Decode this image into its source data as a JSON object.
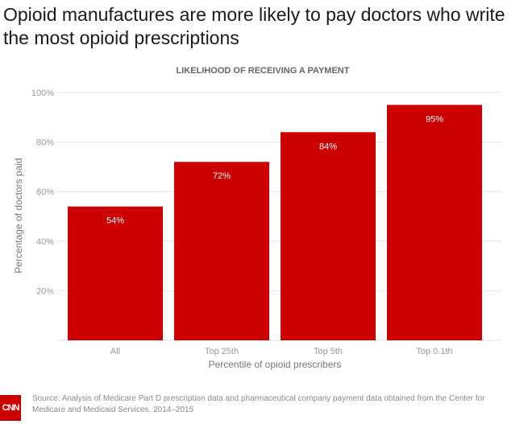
{
  "title": "Opioid manufactures are more likely to pay doctors who write the most opioid prescriptions",
  "source": "Source: Analysis of Medicare Part D prescription data and pharmaceutical company payment data obtained from the Center for Medicare and Medicaid Services, 2014–2015",
  "logo_text": "CNN",
  "chart_data": {
    "type": "bar",
    "title": "LIKELIHOOD OF RECEIVING A PAYMENT",
    "xlabel": "Percentile of opioid prescribers",
    "ylabel": "Percentage of doctors paid",
    "categories": [
      "All",
      "Top 25th",
      "Top 5th",
      "Top 0.1th"
    ],
    "values": [
      54,
      72,
      84,
      95
    ],
    "data_labels": [
      "54%",
      "72%",
      "84%",
      "95%"
    ],
    "yticks": [
      20,
      40,
      60,
      80,
      100
    ],
    "ytick_labels": [
      "20%",
      "40%",
      "60%",
      "80%",
      "100%"
    ],
    "ylim": [
      0,
      100
    ],
    "grid": true,
    "bar_color": "#cc0000"
  }
}
